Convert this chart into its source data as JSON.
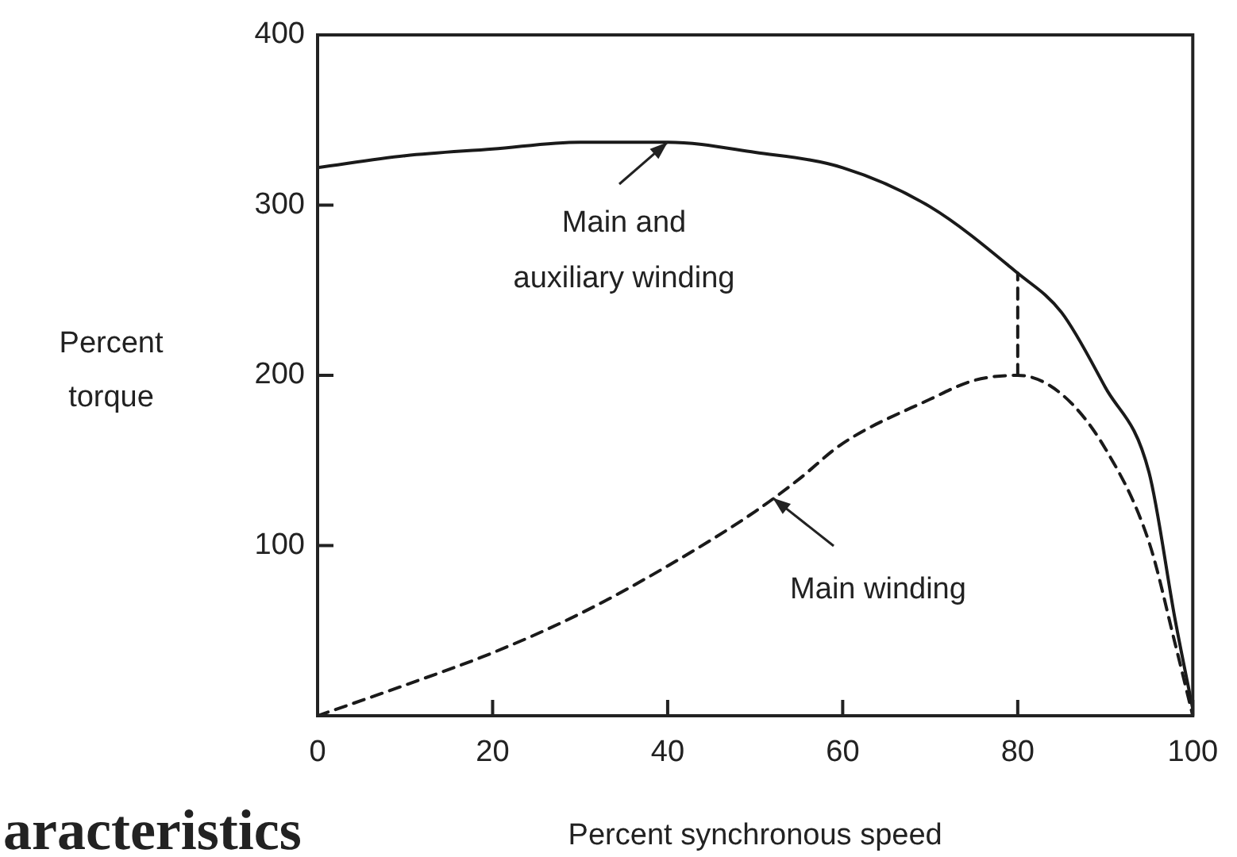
{
  "chart_data": {
    "type": "line",
    "xlabel": "Percent synchronous speed",
    "ylabel": "Percent\ntorque",
    "xlim": [
      0,
      100
    ],
    "ylim": [
      0,
      400
    ],
    "xticks": [
      0,
      20,
      40,
      60,
      80,
      100
    ],
    "yticks": [
      100,
      200,
      300,
      400
    ],
    "grid": false,
    "legend": false,
    "marker": "none",
    "series": [
      {
        "color": "#1a1a1a",
        "line_style": "solid",
        "x": [
          0,
          10,
          20,
          30,
          40,
          50,
          60,
          70,
          80,
          85,
          90,
          95,
          98,
          100
        ],
        "values": [
          322,
          329,
          333,
          337,
          337,
          331,
          322,
          299,
          260,
          237,
          193,
          143,
          56,
          4
        ]
      },
      {
        "color": "#1a1a1a",
        "line_style": "dashed",
        "x": [
          0,
          10,
          20,
          30,
          40,
          50,
          55,
          60,
          70,
          75,
          80,
          85,
          90,
          95,
          98,
          100
        ],
        "values": [
          0,
          18,
          37,
          60,
          88,
          120,
          139,
          160,
          186,
          197,
          200,
          189,
          157,
          102,
          42,
          0
        ]
      },
      {
        "color": "#1a1a1a",
        "line_style": "dashed",
        "x": [
          80,
          80
        ],
        "values": [
          200,
          260
        ]
      }
    ],
    "annotations": [
      {
        "text": "Main and\nauxiliary winding",
        "x": 40,
        "y": 337
      },
      {
        "text": "Main winding",
        "x": 52,
        "y": 128
      },
      "aracteristics"
    ]
  }
}
